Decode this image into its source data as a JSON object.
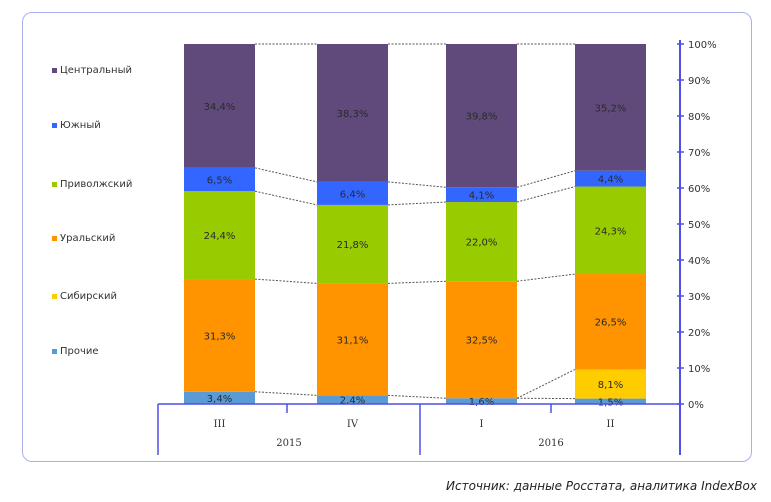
{
  "chart_data": {
    "type": "bar",
    "stacked": true,
    "categories": [
      "III",
      "IV",
      "I",
      "II"
    ],
    "groups": [
      {
        "label": "2015",
        "categories": [
          "III",
          "IV"
        ]
      },
      {
        "label": "2016",
        "categories": [
          "I",
          "II"
        ]
      }
    ],
    "series": [
      {
        "name": "Прочие",
        "color": "#5b9bd5",
        "values": [
          3.4,
          2.4,
          1.6,
          1.5
        ],
        "labels": [
          "3,4%",
          "2,4%",
          "1,6%",
          "1,5%"
        ]
      },
      {
        "name": "Сибирский",
        "color": "#ffcc00",
        "values": [
          0,
          0,
          0,
          8.1
        ],
        "labels": [
          "",
          "",
          "",
          "8,1%"
        ]
      },
      {
        "name": "Уральский",
        "color": "#ff9300",
        "values": [
          31.3,
          31.1,
          32.5,
          26.5
        ],
        "labels": [
          "31,3%",
          "31,1%",
          "32,5%",
          "26,5%"
        ]
      },
      {
        "name": "Приволжский",
        "color": "#99cc00",
        "values": [
          24.4,
          21.8,
          22.0,
          24.3
        ],
        "labels": [
          "24,4%",
          "21,8%",
          "22,0%",
          "24,3%"
        ]
      },
      {
        "name": "Южный",
        "color": "#3366ff",
        "values": [
          6.5,
          6.4,
          4.1,
          4.4
        ],
        "labels": [
          "6,5%",
          "6,4%",
          "4,1%",
          "4,4%"
        ]
      },
      {
        "name": "Центральный",
        "color": "#604a7b",
        "values": [
          34.4,
          38.3,
          39.8,
          35.2
        ],
        "labels": [
          "34,4%",
          "38,3%",
          "39,8%",
          "35,2%"
        ]
      }
    ],
    "ylim": [
      0,
      100
    ],
    "yticks": [
      "0%",
      "10%",
      "20%",
      "30%",
      "40%",
      "50%",
      "60%",
      "70%",
      "80%",
      "90%",
      "100%"
    ],
    "legend_order": [
      "Центральный",
      "Южный",
      "Приволжский",
      "Уральский",
      "Сибирский",
      "Прочие"
    ],
    "legend_position": "left",
    "axis_color": "#4f4fe8"
  },
  "source": "Источник: данные Росстата, аналитика IndexBox"
}
